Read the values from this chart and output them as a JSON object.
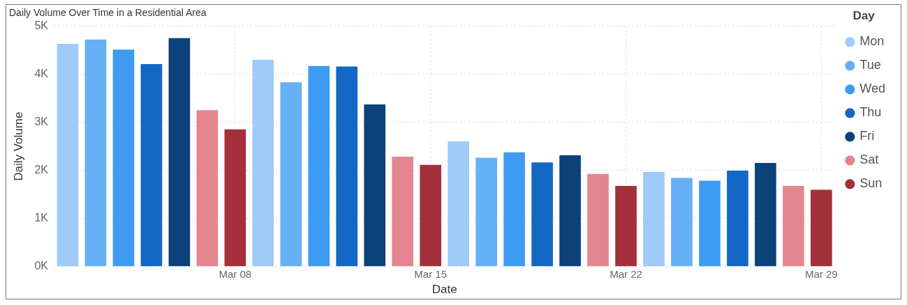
{
  "chart_data": {
    "type": "bar",
    "title": "Daily Volume Over Time in a Residential Area",
    "xlabel": "Date",
    "ylabel": "Daily Volume",
    "legend_title": "Day",
    "legend": "right",
    "marker": "circle",
    "grid": true,
    "xlim": [
      "--03-01T12:00",
      "--03-29T12:00"
    ],
    "xticks": [
      {
        "value": "--03-08",
        "label": "Mar 08"
      },
      {
        "value": "--03-15",
        "label": "Mar 15"
      },
      {
        "value": "--03-22",
        "label": "Mar 22"
      },
      {
        "value": "--03-29",
        "label": "Mar 29"
      }
    ],
    "ylim": [
      0,
      5000
    ],
    "yticks": [
      {
        "value": 0,
        "label": "0K"
      },
      {
        "value": 1000,
        "label": "1K"
      },
      {
        "value": 2000,
        "label": "2K"
      },
      {
        "value": 3000,
        "label": "3K"
      },
      {
        "value": 4000,
        "label": "4K"
      },
      {
        "value": 5000,
        "label": "5K"
      }
    ],
    "series": [
      {
        "name": "Mon",
        "color": "#9ecbf7",
        "x": [
          "--03-02",
          "--03-09",
          "--03-16",
          "--03-23"
        ],
        "values": [
          4630,
          4300,
          2600,
          1960
        ]
      },
      {
        "name": "Tue",
        "color": "#66b0f5",
        "x": [
          "--03-03",
          "--03-10",
          "--03-17",
          "--03-24"
        ],
        "values": [
          4720,
          3830,
          2260,
          1840
        ]
      },
      {
        "name": "Wed",
        "color": "#3d9cf2",
        "x": [
          "--03-04",
          "--03-11",
          "--03-18",
          "--03-25"
        ],
        "values": [
          4510,
          4170,
          2370,
          1780
        ]
      },
      {
        "name": "Thu",
        "color": "#1268c4",
        "x": [
          "--03-05",
          "--03-12",
          "--03-19",
          "--03-26"
        ],
        "values": [
          4210,
          4160,
          2160,
          1990
        ]
      },
      {
        "name": "Fri",
        "color": "#0c427a",
        "x": [
          "--03-06",
          "--03-13",
          "--03-20",
          "--03-27"
        ],
        "values": [
          4750,
          3370,
          2310,
          2150
        ]
      },
      {
        "name": "Sat",
        "color": "#e4868f",
        "x": [
          "--03-07",
          "--03-14",
          "--03-21",
          "--03-28"
        ],
        "values": [
          3250,
          2280,
          1920,
          1670
        ]
      },
      {
        "name": "Sun",
        "color": "#a3303a",
        "x": [
          "--03-08",
          "--03-15",
          "--03-22",
          "--03-29"
        ],
        "values": [
          2850,
          2110,
          1670,
          1590
        ]
      }
    ]
  }
}
